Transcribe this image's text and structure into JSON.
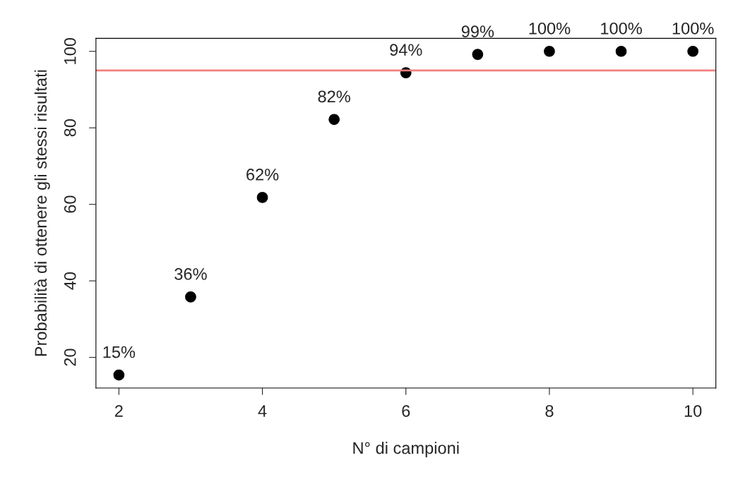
{
  "chart_data": {
    "type": "scatter",
    "xlabel": "N° di campioni",
    "ylabel": "Probabilità di ottenere gli stessi risultati",
    "x": [
      2,
      3,
      4,
      5,
      6,
      7,
      8,
      9,
      10
    ],
    "series": [
      {
        "color": "#000000",
        "values": [
          15.4,
          35.8,
          61.8,
          82.2,
          94.4,
          99.2,
          100,
          100,
          100
        ],
        "value_labels": [
          "15%",
          "36%",
          "62%",
          "82%",
          "94%",
          "99%",
          "100%",
          "100%",
          "100%"
        ]
      }
    ],
    "xlim": [
      1.68,
      10.32
    ],
    "ylim": [
      12,
      103.4
    ],
    "xticks": [
      2,
      4,
      6,
      8,
      10
    ],
    "yticks": [
      20,
      40,
      60,
      80,
      100
    ],
    "ref_lines": [
      {
        "axis": "y",
        "value": 95,
        "color": "#f08080"
      }
    ],
    "marker": "circle",
    "grid": false,
    "legend": false
  }
}
